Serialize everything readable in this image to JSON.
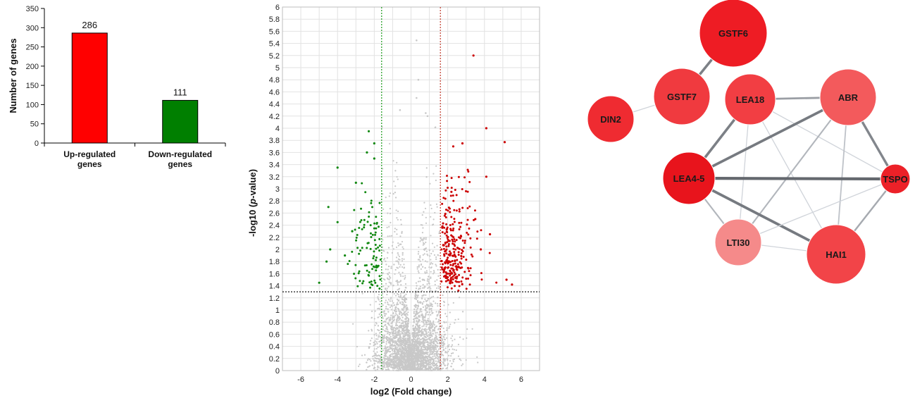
{
  "chart_data": [
    {
      "type": "bar",
      "ylabel": "Number of genes",
      "categories": [
        [
          "Up-regulated",
          "genes"
        ],
        [
          "Down-regulated",
          "genes"
        ]
      ],
      "values": [
        286,
        111
      ],
      "data_labels": [
        "286",
        "111"
      ],
      "colors": [
        "#ff0000",
        "#007f00"
      ],
      "ylim": [
        0,
        350
      ],
      "yticks": [
        0,
        50,
        100,
        150,
        200,
        250,
        300,
        350
      ],
      "grid": false
    },
    {
      "type": "scatter",
      "xlabel_pre": "log2 (Fold change)",
      "ylabel_pre": "-log10 (",
      "ylabel_italic": "p",
      "ylabel_post": "-value)",
      "xlim": [
        -7,
        7
      ],
      "ylim": [
        0,
        6
      ],
      "xticks": [
        -6,
        -4,
        -2,
        0,
        2,
        4,
        6
      ],
      "yticks": [
        "0",
        "0.2",
        "0.4",
        "0.6",
        "0.8",
        "1",
        "1.2",
        "1.4",
        "1.6",
        "1.8",
        "2",
        "2.2",
        "2.4",
        "2.6",
        "2.8",
        "3",
        "3.2",
        "3.4",
        "3.6",
        "3.8",
        "4",
        "4.2",
        "4.4",
        "4.6",
        "4.8",
        "5",
        "5.2",
        "5.4",
        "5.6",
        "5.8",
        "6"
      ],
      "grid": true,
      "thresholds": {
        "x_low": -1.6,
        "x_high": 1.6,
        "y": 1.3
      },
      "threshold_colors": {
        "x_low": "#1a9a1a",
        "x_high": "#c0392b",
        "y": "#000000"
      },
      "series_colors": {
        "up": "#cc0000",
        "down": "#118811",
        "ns": "#c8c8c8"
      },
      "series_counts": {
        "up": 286,
        "down": 111
      },
      "highlighted_points": {
        "up": [
          [
            3.4,
            5.2
          ],
          [
            4.1,
            4.0
          ],
          [
            5.1,
            3.77
          ],
          [
            2.3,
            3.7
          ],
          [
            2.8,
            3.75
          ],
          [
            4.1,
            3.2
          ],
          [
            3.5,
            2.5
          ],
          [
            5.2,
            1.5
          ],
          [
            5.5,
            1.42
          ],
          [
            2.2,
            2.95
          ],
          [
            4.3,
            2.25
          ],
          [
            3.8,
            2.0
          ]
        ],
        "down": [
          [
            -2.3,
            3.95
          ],
          [
            -2.0,
            3.75
          ],
          [
            -4.0,
            3.35
          ],
          [
            -5.0,
            1.45
          ],
          [
            -4.5,
            2.7
          ],
          [
            -3.0,
            3.1
          ],
          [
            -2.4,
            3.6
          ],
          [
            -4.0,
            2.45
          ],
          [
            -4.4,
            2.0
          ],
          [
            -4.6,
            1.8
          ],
          [
            -3.6,
            1.9
          ],
          [
            -3.2,
            2.3
          ],
          [
            -2.0,
            3.5
          ]
        ],
        "ns": [
          [
            0.3,
            5.45
          ],
          [
            0.4,
            4.8
          ],
          [
            -0.6,
            4.3
          ],
          [
            0.9,
            4.2
          ],
          [
            0.3,
            4.5
          ],
          [
            0.8,
            4.25
          ]
        ]
      }
    },
    {
      "type": "network",
      "nodes": [
        {
          "id": "GSTF6",
          "label": "GSTF6",
          "color": "#ee1c24"
        },
        {
          "id": "GSTF7",
          "label": "GSTF7",
          "color": "#f03a3f"
        },
        {
          "id": "DIN2",
          "label": "DIN2",
          "color": "#ef2b31"
        },
        {
          "id": "LEA18",
          "label": "LEA18",
          "color": "#f23e43"
        },
        {
          "id": "ABR",
          "label": "ABR",
          "color": "#f35a5c"
        },
        {
          "id": "LEA4-5",
          "label": "LEA4-5",
          "color": "#e8141c"
        },
        {
          "id": "TSPO",
          "label": "TSPO",
          "color": "#ec2128"
        },
        {
          "id": "LTI30",
          "label": "LTI30",
          "color": "#f58a8a"
        },
        {
          "id": "HAI1",
          "label": "HAI1",
          "color": "#f24448"
        }
      ],
      "edges": [
        {
          "source": "GSTF6",
          "target": "GSTF7",
          "weight": 0.8
        },
        {
          "source": "DIN2",
          "target": "GSTF7",
          "weight": 0.1
        },
        {
          "source": "LEA18",
          "target": "ABR",
          "weight": 0.55
        },
        {
          "source": "LEA18",
          "target": "LEA4-5",
          "weight": 0.8
        },
        {
          "source": "LEA18",
          "target": "TSPO",
          "weight": 0.1
        },
        {
          "source": "LEA18",
          "target": "HAI1",
          "weight": 0.1
        },
        {
          "source": "LEA18",
          "target": "LTI30",
          "weight": 0.1
        },
        {
          "source": "ABR",
          "target": "LEA4-5",
          "weight": 0.85
        },
        {
          "source": "ABR",
          "target": "TSPO",
          "weight": 0.75
        },
        {
          "source": "ABR",
          "target": "HAI1",
          "weight": 0.25
        },
        {
          "source": "ABR",
          "target": "LTI30",
          "weight": 0.35
        },
        {
          "source": "LEA4-5",
          "target": "TSPO",
          "weight": 1.0
        },
        {
          "source": "LEA4-5",
          "target": "HAI1",
          "weight": 0.85
        },
        {
          "source": "LEA4-5",
          "target": "LTI30",
          "weight": 0.35
        },
        {
          "source": "TSPO",
          "target": "HAI1",
          "weight": 0.45
        },
        {
          "source": "TSPO",
          "target": "LTI30",
          "weight": 0.1
        },
        {
          "source": "LTI30",
          "target": "HAI1",
          "weight": 0.1
        }
      ]
    }
  ]
}
